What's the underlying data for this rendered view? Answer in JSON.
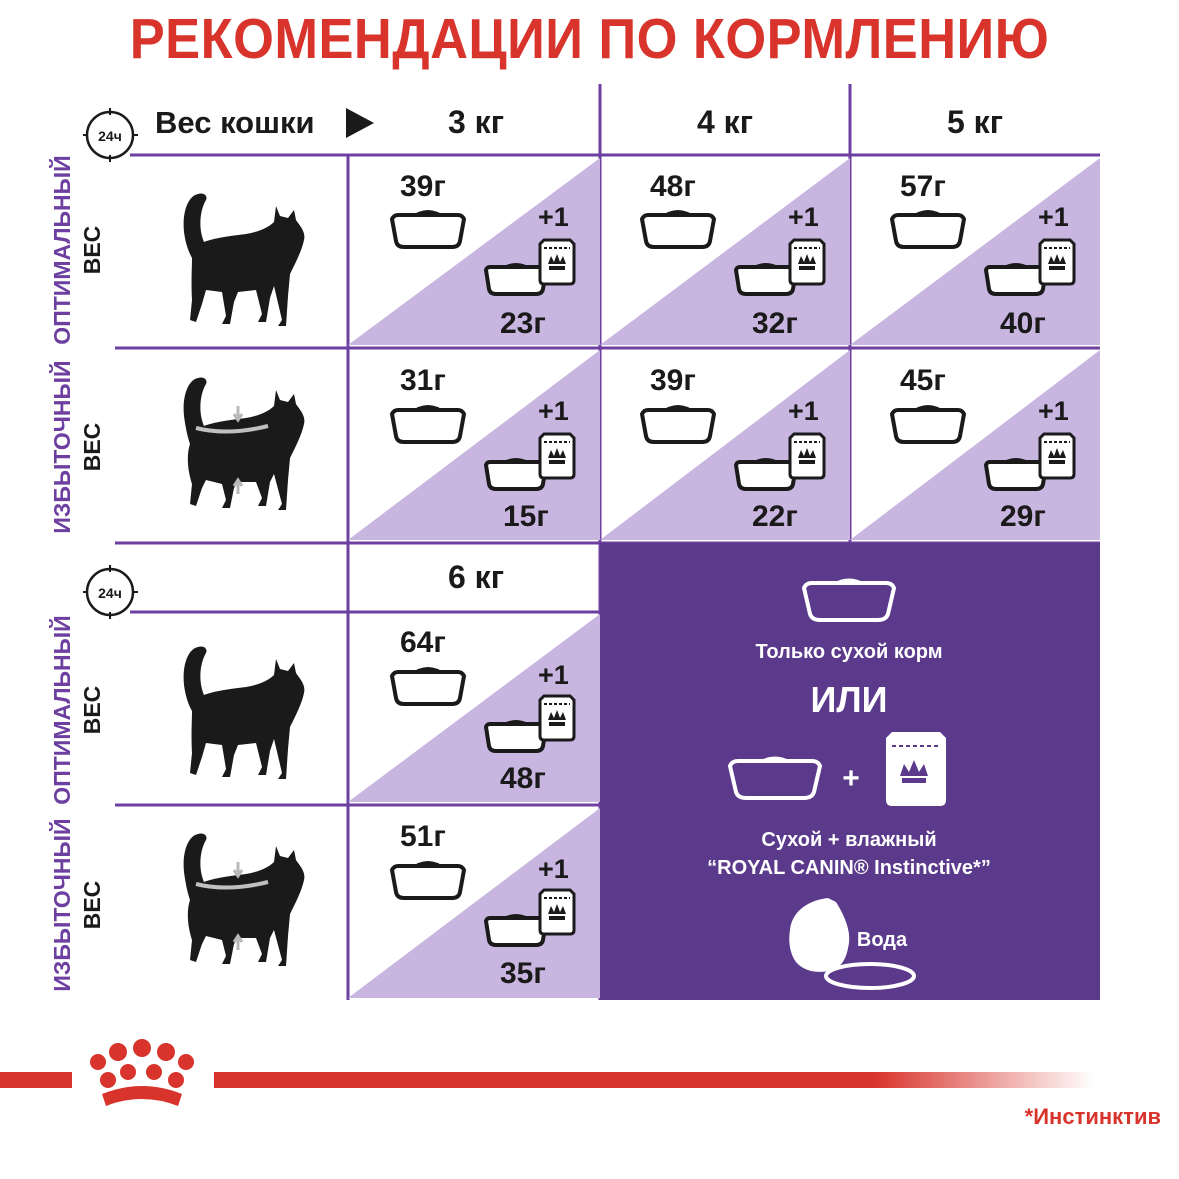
{
  "title": "РЕКОМЕНДАЦИИ ПО КОРМЛЕНИЮ",
  "clock_label": "24ч",
  "weight_label": "Вес кошки",
  "weights_top": [
    "3 кг",
    "4 кг",
    "5 кг"
  ],
  "weight_bottom": "6 кг",
  "rows": {
    "optimal_line1": "ОПТИМАЛЬНЫЙ",
    "optimal_line2": "ВЕС",
    "excess_line1": "ИЗБЫТОЧНЫЙ",
    "excess_line2": "ВЕС"
  },
  "plus_one": "+1",
  "cells": {
    "opt_3": {
      "dry_only": "39г",
      "dry_mixed": "23г"
    },
    "opt_4": {
      "dry_only": "48г",
      "dry_mixed": "32г"
    },
    "opt_5": {
      "dry_only": "57г",
      "dry_mixed": "40г"
    },
    "exc_3": {
      "dry_only": "31г",
      "dry_mixed": "15г"
    },
    "exc_4": {
      "dry_only": "39г",
      "dry_mixed": "22г"
    },
    "exc_5": {
      "dry_only": "45г",
      "dry_mixed": "29г"
    },
    "opt_6": {
      "dry_only": "64г",
      "dry_mixed": "48г"
    },
    "exc_6": {
      "dry_only": "51г",
      "dry_mixed": "35г"
    }
  },
  "legend": {
    "dry_only": "Только сухой корм",
    "or": "ИЛИ",
    "plus": "+",
    "mixed_line1": "Сухой + влажный",
    "mixed_line2": "“ROYAL CANIN® Instinctive*”",
    "water": "Вода"
  },
  "footnote": "*Инстинктив",
  "colors": {
    "red": "#d8342c",
    "purple": "#6c3fa0",
    "panel": "#5b3a8c",
    "lavender": "#c8b5e0",
    "ink": "#1a1a1a"
  }
}
